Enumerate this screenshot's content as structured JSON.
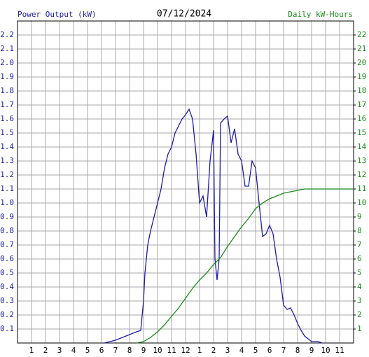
{
  "chart_data": {
    "type": "line",
    "title": "07/12/2024",
    "y_label": "Power Output (kW)",
    "y2_label": "Daily kW-Hours",
    "xlim": [
      0,
      24
    ],
    "xticks": [
      1,
      2,
      3,
      4,
      5,
      6,
      7,
      8,
      9,
      10,
      11,
      12,
      {
        "value": 13,
        "label": "1"
      },
      {
        "value": 14,
        "label": "2"
      },
      {
        "value": 15,
        "label": "3"
      },
      {
        "value": 16,
        "label": "4"
      },
      {
        "value": 17,
        "label": "5"
      },
      {
        "value": 18,
        "label": "6"
      },
      {
        "value": 19,
        "label": "7"
      },
      {
        "value": 20,
        "label": "8"
      },
      {
        "value": 21,
        "label": "9"
      },
      {
        "value": 22,
        "label": "10"
      },
      {
        "value": 23,
        "label": "11"
      }
    ],
    "ylim": [
      0,
      2.3
    ],
    "yticks": [
      0.1,
      0.2,
      0.3,
      0.4,
      0.5,
      0.6,
      0.7,
      0.8,
      0.9,
      {
        "value": 1,
        "label": "1.0"
      },
      1.1,
      1.2,
      1.3,
      1.4,
      1.5,
      1.6,
      1.7,
      1.8,
      1.9,
      {
        "value": 2,
        "label": "2.0"
      },
      2.1,
      2.2
    ],
    "y2lim": [
      0,
      23
    ],
    "y2ticks": [
      1,
      2,
      3,
      4,
      5,
      6,
      7,
      8,
      9,
      10,
      11,
      12,
      13,
      14,
      15,
      16,
      17,
      18,
      19,
      20,
      21,
      22
    ],
    "grid": true,
    "series": [
      {
        "name": "Power Output (kW)",
        "color": "#1c1ca8",
        "x": [
          6.2,
          7,
          7.5,
          8,
          8.5,
          8.8,
          9,
          9.1,
          9.3,
          9.5,
          9.75,
          10,
          10.25,
          10.5,
          10.75,
          11,
          11.25,
          11.5,
          11.75,
          12,
          12.25,
          12.5,
          12.75,
          13,
          13.25,
          13.5,
          13.75,
          14,
          14.1,
          14.25,
          14.4,
          14.5,
          14.75,
          15,
          15.25,
          15.5,
          15.75,
          16,
          16.25,
          16.5,
          16.75,
          17,
          17.25,
          17.5,
          17.75,
          18,
          18.25,
          18.5,
          18.75,
          19,
          19.25,
          19.5,
          19.75,
          20,
          20.25,
          20.5,
          20.75,
          21,
          21.5,
          21.75
        ],
        "values": [
          0,
          0.02,
          0.04,
          0.06,
          0.08,
          0.09,
          0.3,
          0.5,
          0.7,
          0.8,
          0.9,
          1.0,
          1.1,
          1.25,
          1.35,
          1.4,
          1.5,
          1.55,
          1.6,
          1.63,
          1.67,
          1.6,
          1.35,
          1.0,
          1.05,
          0.9,
          1.3,
          1.52,
          0.6,
          0.45,
          0.6,
          1.57,
          1.6,
          1.62,
          1.43,
          1.53,
          1.35,
          1.3,
          1.12,
          1.12,
          1.3,
          1.25,
          1.0,
          0.76,
          0.78,
          0.84,
          0.78,
          0.6,
          0.47,
          0.27,
          0.24,
          0.25,
          0.2,
          0.14,
          0.09,
          0.05,
          0.03,
          0.01,
          0.01,
          0
        ]
      },
      {
        "name": "Daily kW-Hours",
        "color": "#1a8a1a",
        "axis": "y2",
        "x": [
          8.5,
          9,
          9.5,
          10,
          10.5,
          11,
          11.5,
          12,
          12.5,
          13,
          13.5,
          14,
          14.5,
          15,
          15.5,
          16,
          16.5,
          17,
          17.5,
          18,
          18.5,
          19,
          19.5,
          20,
          20.5,
          24
        ],
        "values": [
          0,
          0.1,
          0.4,
          0.8,
          1.3,
          1.9,
          2.5,
          3.2,
          3.9,
          4.5,
          5.0,
          5.6,
          6.1,
          6.9,
          7.6,
          8.3,
          8.9,
          9.6,
          10.0,
          10.3,
          10.5,
          10.7,
          10.8,
          10.9,
          11.0,
          11.0
        ]
      }
    ]
  }
}
